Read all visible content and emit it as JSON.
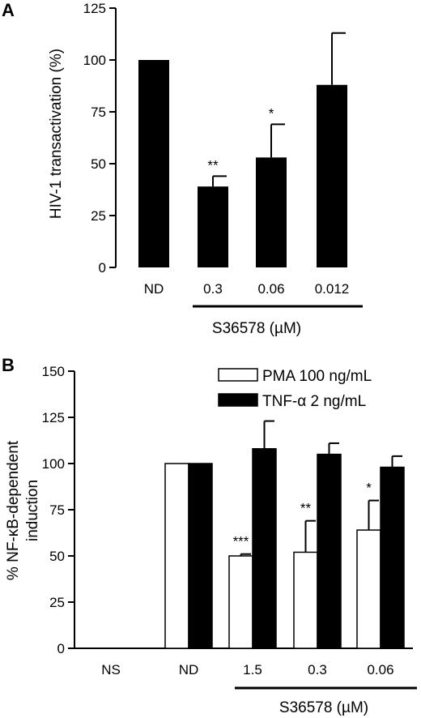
{
  "chart_data": [
    {
      "panel": "A",
      "type": "bar",
      "categories": [
        "ND",
        "0.3",
        "0.06",
        "0.012"
      ],
      "series": [
        {
          "values": [
            100,
            39,
            53,
            88
          ],
          "errors": [
            0,
            5,
            16,
            25
          ],
          "color": "#000000"
        }
      ],
      "significance": [
        "",
        "**",
        "*",
        ""
      ],
      "ylabel": "HIV-1 transactivation (%)",
      "ylim": [
        0,
        125
      ],
      "yticks": [
        0,
        25,
        50,
        75,
        100,
        125
      ],
      "bracket_label": "S36578 (µM)",
      "grid": false,
      "legend": null
    },
    {
      "panel": "B",
      "type": "bar",
      "categories": [
        "NS",
        "ND",
        "1.5",
        "0.3",
        "0.06"
      ],
      "series": [
        {
          "name": "PMA 100 ng/mL",
          "values": [
            0,
            100,
            50,
            52,
            64
          ],
          "errors": [
            0,
            0,
            1,
            17,
            16
          ],
          "fill": "#ffffff"
        },
        {
          "name": "TNF-α 2 ng/mL",
          "values": [
            0,
            100,
            108,
            105,
            98
          ],
          "errors": [
            0,
            0,
            15,
            6,
            6
          ],
          "fill": "#000000"
        }
      ],
      "significance": [
        "",
        "",
        "***",
        "**",
        "*"
      ],
      "ylabel_line1": "% NF-κB-dependent",
      "ylabel_line2": "induction",
      "ylim": [
        0,
        150
      ],
      "yticks": [
        0,
        25,
        50,
        75,
        100,
        125,
        150
      ],
      "bracket_label": "S36578 (µM)",
      "grid": false,
      "legend": "top-right"
    }
  ]
}
